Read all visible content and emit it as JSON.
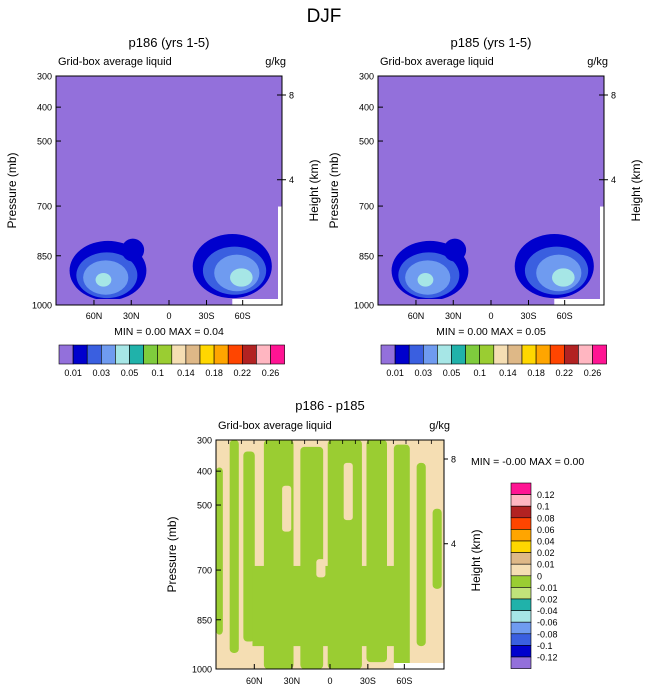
{
  "figure_title": "DJF",
  "chart_data": [
    {
      "type": "contour",
      "title": "p186 (yrs 1-5)",
      "left_label": "Grid-box average liquid",
      "right_label": "g/kg",
      "ylabel": "Pressure (mb)",
      "y2label": "Height (km)",
      "yticks": [
        "300",
        "400",
        "500",
        "700",
        "850",
        "1000"
      ],
      "y2ticks": [
        "8",
        "4"
      ],
      "xticks": [
        "60N",
        "30N",
        "0",
        "30S",
        "60S"
      ],
      "min_max": "MIN =   0.00  MAX =   0.04",
      "colorbar_labels": [
        "0.01",
        "0.03",
        "0.05",
        "0.1",
        "0.14",
        "0.18",
        "0.22",
        "0.26"
      ]
    },
    {
      "type": "contour",
      "title": "p185 (yrs 1-5)",
      "left_label": "Grid-box average liquid",
      "right_label": "g/kg",
      "ylabel": "Pressure (mb)",
      "y2label": "Height (km)",
      "yticks": [
        "300",
        "400",
        "500",
        "700",
        "850",
        "1000"
      ],
      "y2ticks": [
        "8",
        "4"
      ],
      "xticks": [
        "60N",
        "30N",
        "0",
        "30S",
        "60S"
      ],
      "min_max": "MIN =   0.00  MAX =   0.05",
      "colorbar_labels": [
        "0.01",
        "0.03",
        "0.05",
        "0.1",
        "0.14",
        "0.18",
        "0.22",
        "0.26"
      ]
    },
    {
      "type": "contour",
      "title": "p186 - p185",
      "left_label": "Grid-box average liquid",
      "right_label": "g/kg",
      "ylabel": "Pressure (mb)",
      "y2label": "Height (km)",
      "yticks": [
        "300",
        "400",
        "500",
        "700",
        "850",
        "1000"
      ],
      "y2ticks": [
        "8",
        "4"
      ],
      "xticks": [
        "60N",
        "30N",
        "0",
        "30S",
        "60S"
      ],
      "min_max": "MIN =  -0.00   MAX =   0.00",
      "colorbar_labels": [
        "0.12",
        "0.1",
        "0.08",
        "0.06",
        "0.04",
        "0.02",
        "0.01",
        "0",
        "-0.01",
        "-0.02",
        "-0.04",
        "-0.06",
        "-0.08",
        "-0.1",
        "-0.12"
      ]
    }
  ],
  "colors": {
    "seq_palette": [
      "#9370db",
      "#0000cd",
      "#3a5fe0",
      "#6f9bf0",
      "#a6e6e6",
      "#20b2aa",
      "#7fcc3d",
      "#9acd32",
      "#f5deb3",
      "#deb887",
      "#ffd700",
      "#ffa500",
      "#ff4500",
      "#b22222",
      "#ffb6c1",
      "#ff1493"
    ],
    "diff_palette": [
      "#ff1493",
      "#ffb6c1",
      "#b22222",
      "#ff4500",
      "#ffa500",
      "#ffd700",
      "#deb887",
      "#f5deb3",
      "#9acd32",
      "#c1e37a",
      "#20b2aa",
      "#a6e6e6",
      "#6f9bf0",
      "#3a5fe0",
      "#0000cd",
      "#9370db"
    ]
  }
}
